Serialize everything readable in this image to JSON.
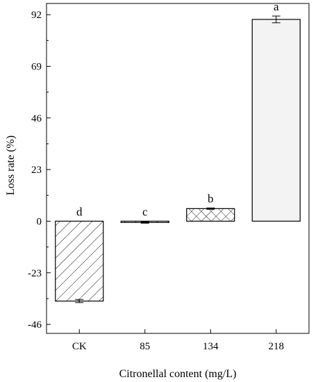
{
  "chart_data": {
    "type": "bar",
    "title": "",
    "xlabel": "Citronellal content (mg/L)",
    "ylabel": "Loss rate (%)",
    "categories": [
      "CK",
      "85",
      "134",
      "218"
    ],
    "values": [
      -35.6,
      -0.6,
      5.6,
      89.9
    ],
    "errors": [
      0.7,
      0.3,
      0.3,
      1.5
    ],
    "significance_letters": [
      "d",
      "c",
      "b",
      "a"
    ],
    "patterns": [
      "diag-up",
      "diag-down",
      "crosshatch",
      "solid"
    ],
    "fill_colors": [
      "#ffffff",
      "#ffffff",
      "#ffffff",
      "#f3f3f3"
    ],
    "ylim": [
      -50,
      97
    ],
    "yticks": [
      -46,
      -23,
      0,
      23,
      46,
      69,
      92
    ],
    "ytick_labels": [
      "-46",
      "-23",
      "0",
      "23",
      "46",
      "69",
      "92"
    ],
    "grid": false,
    "legend": "none"
  }
}
